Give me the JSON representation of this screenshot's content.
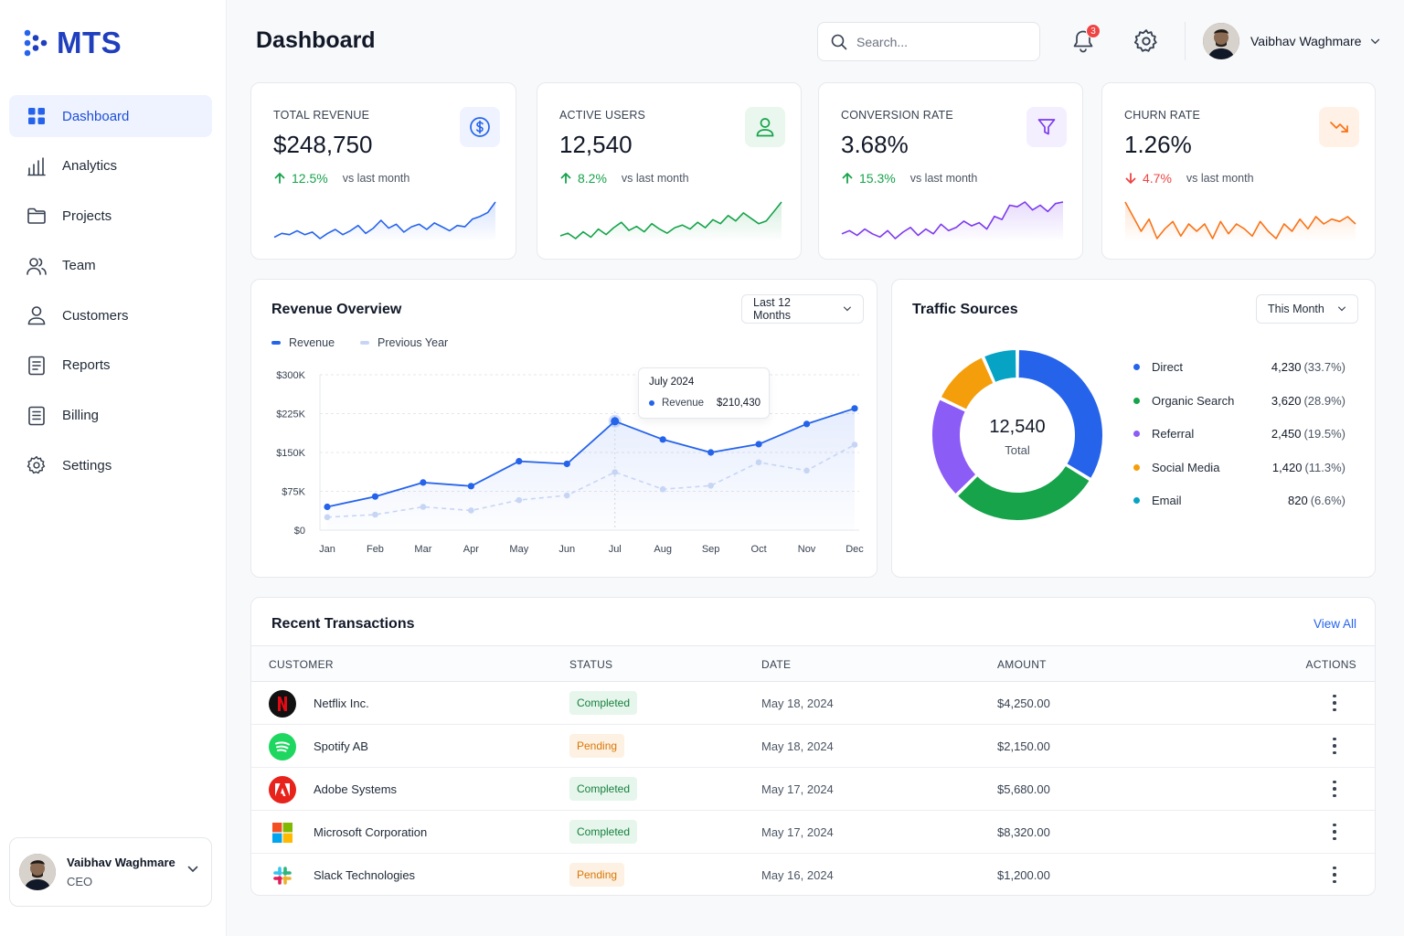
{
  "app": {
    "logo_text": "MTS",
    "page_title": "Dashboard"
  },
  "sidebar": {
    "items": [
      {
        "label": "Dashboard",
        "icon": "grid-icon",
        "active": true
      },
      {
        "label": "Analytics",
        "icon": "bar-chart-icon"
      },
      {
        "label": "Projects",
        "icon": "folder-icon"
      },
      {
        "label": "Team",
        "icon": "team-icon"
      },
      {
        "label": "Customers",
        "icon": "user-icon"
      },
      {
        "label": "Reports",
        "icon": "document-icon"
      },
      {
        "label": "Billing",
        "icon": "invoice-icon"
      },
      {
        "label": "Settings",
        "icon": "gear-icon"
      }
    ],
    "user": {
      "name": "Vaibhav Waghmare",
      "role": "CEO"
    }
  },
  "header": {
    "search_placeholder": "Search...",
    "notification_count": "3",
    "user_name": "Vaibhav Waghmare"
  },
  "kpis": [
    {
      "label": "TOTAL REVENUE",
      "value": "$248,750",
      "change": "12.5%",
      "direction": "up",
      "vs": "vs last month",
      "color": "#2563eb",
      "icon": "dollar-icon",
      "spark": [
        22,
        25,
        24,
        27,
        24,
        26,
        21,
        25,
        28,
        24,
        27,
        31,
        25,
        29,
        35,
        29,
        32,
        26,
        30,
        32,
        28,
        33,
        30,
        27,
        31,
        30,
        36,
        38,
        41,
        49
      ]
    },
    {
      "label": "ACTIVE USERS",
      "value": "12,540",
      "change": "8.2%",
      "direction": "up",
      "vs": "vs last month",
      "color": "#16a34a",
      "icon": "user-icon",
      "spark": [
        25,
        27,
        23,
        28,
        24,
        30,
        26,
        31,
        35,
        29,
        32,
        28,
        34,
        30,
        27,
        31,
        33,
        30,
        35,
        31,
        37,
        34,
        40,
        36,
        42,
        38,
        34,
        36,
        43,
        50
      ]
    },
    {
      "label": "CONVERSION RATE",
      "value": "3.68%",
      "change": "15.3%",
      "direction": "up",
      "vs": "vs last month",
      "color": "#7c3aed",
      "icon": "funnel-icon",
      "spark": [
        27,
        29,
        26,
        30,
        27,
        25,
        29,
        24,
        28,
        31,
        26,
        30,
        27,
        33,
        29,
        31,
        35,
        32,
        34,
        30,
        38,
        36,
        45,
        44,
        47,
        42,
        45,
        41,
        46,
        47
      ]
    },
    {
      "label": "CHURN RATE",
      "value": "1.26%",
      "change": "4.7%",
      "direction": "down",
      "vs": "vs last month",
      "color": "#f97316",
      "icon": "trend-down-icon",
      "spark": [
        42,
        36,
        30,
        35,
        27,
        31,
        34,
        28,
        33,
        30,
        33,
        27,
        34,
        29,
        33,
        31,
        28,
        34,
        30,
        27,
        33,
        30,
        35,
        31,
        36,
        33,
        35,
        34,
        36,
        33
      ]
    }
  ],
  "revenue": {
    "title": "Revenue Overview",
    "range": "Last 12 Months",
    "legend": {
      "current": "Revenue",
      "previous": "Previous Year"
    },
    "tooltip": {
      "title": "July 2024",
      "label": "Revenue",
      "value": "$210,430"
    }
  },
  "chart_data": {
    "type": "line",
    "categories": [
      "Jan",
      "Feb",
      "Mar",
      "Apr",
      "May",
      "Jun",
      "Jul",
      "Aug",
      "Sep",
      "Oct",
      "Nov",
      "Dec"
    ],
    "series": [
      {
        "name": "Revenue",
        "values": [
          45000,
          65000,
          92000,
          85000,
          133000,
          128000,
          210430,
          175000,
          150000,
          166000,
          205000,
          235000
        ]
      },
      {
        "name": "Previous Year",
        "values": [
          25000,
          30000,
          45000,
          38000,
          58000,
          67000,
          112000,
          79000,
          86000,
          131000,
          115000,
          165000
        ]
      }
    ],
    "yticks": [
      "$0",
      "$75K",
      "$150K",
      "$225K",
      "$300K"
    ],
    "ylim": [
      0,
      300000
    ],
    "grid": true,
    "legend": "top-left"
  },
  "traffic": {
    "title": "Traffic Sources",
    "range": "This Month",
    "total": "12,540",
    "total_label": "Total",
    "sources": [
      {
        "name": "Direct",
        "value": "4,230",
        "pct": "(33.7%)",
        "share": 33.7,
        "color": "#2563eb"
      },
      {
        "name": "Organic Search",
        "value": "3,620",
        "pct": "(28.9%)",
        "share": 28.9,
        "color": "#16a34a"
      },
      {
        "name": "Referral",
        "value": "2,450",
        "pct": "(19.5%)",
        "share": 19.5,
        "color": "#8b5cf6"
      },
      {
        "name": "Social Media",
        "value": "1,420",
        "pct": "(11.3%)",
        "share": 11.3,
        "color": "#f59e0b"
      },
      {
        "name": "Email",
        "value": "820",
        "pct": "(6.6%)",
        "share": 6.6,
        "color": "#06a3c4"
      }
    ]
  },
  "transactions": {
    "title": "Recent Transactions",
    "view_all": "View All",
    "columns": {
      "customer": "CUSTOMER",
      "status": "STATUS",
      "date": "DATE",
      "amount": "AMOUNT",
      "actions": "ACTIONS"
    },
    "rows": [
      {
        "customer": "Netflix Inc.",
        "status": "Completed",
        "date": "May 18, 2024",
        "amount": "$4,250.00",
        "logo": "netflix-logo-icon"
      },
      {
        "customer": "Spotify AB",
        "status": "Pending",
        "date": "May 18, 2024",
        "amount": "$2,150.00",
        "logo": "spotify-logo-icon"
      },
      {
        "customer": "Adobe Systems",
        "status": "Completed",
        "date": "May 17, 2024",
        "amount": "$5,680.00",
        "logo": "adobe-logo-icon"
      },
      {
        "customer": "Microsoft Corporation",
        "status": "Completed",
        "date": "May 17, 2024",
        "amount": "$8,320.00",
        "logo": "microsoft-logo-icon"
      },
      {
        "customer": "Slack Technologies",
        "status": "Pending",
        "date": "May 16, 2024",
        "amount": "$1,200.00",
        "logo": "slack-logo-icon"
      }
    ]
  }
}
